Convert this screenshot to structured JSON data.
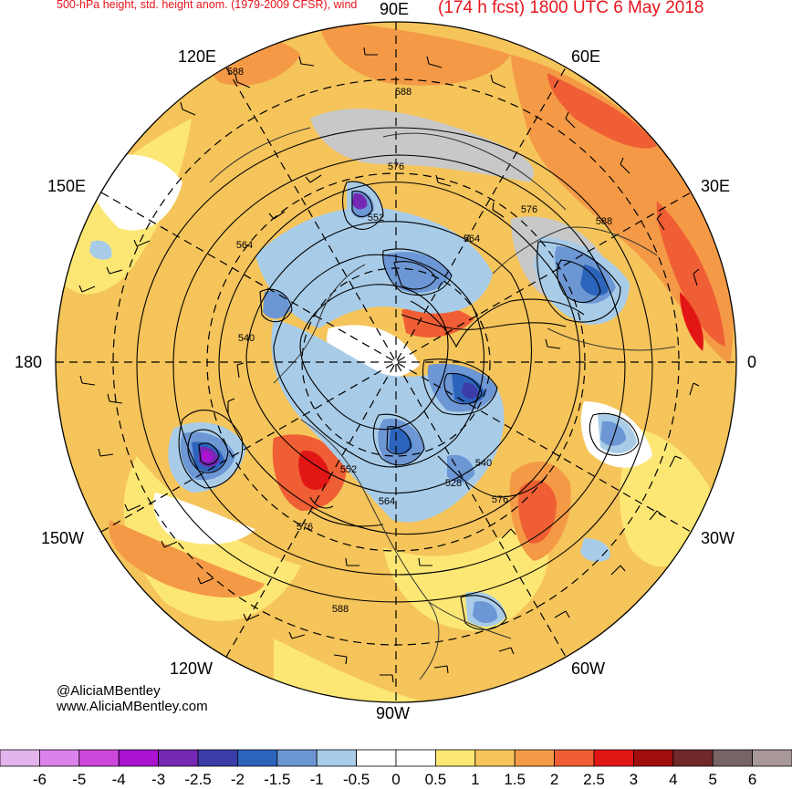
{
  "header": {
    "left_title": "500-hPa height, std. height anom. (1979-2009 CFSR), wind",
    "right_title": "(174 h fcst) 1800 UTC 6 May 2018"
  },
  "longitude_labels": {
    "e90": "90E",
    "e120": "120E",
    "e60": "60E",
    "e150": "150E",
    "e30": "30E",
    "lon180": "180",
    "lon0": "0",
    "w150": "150W",
    "w30": "30W",
    "w120": "120W",
    "w60": "60W",
    "w90": "90W"
  },
  "contour_labels": [
    "588",
    "588",
    "588",
    "576",
    "576",
    "552",
    "564",
    "564",
    "540",
    "552",
    "564",
    "576",
    "540",
    "528",
    "576",
    "588"
  ],
  "credits": {
    "handle": "@AliciaMBentley",
    "website": "www.AliciaMBentley.com"
  },
  "colorbar": {
    "colors": [
      "#e4b4ec",
      "#dc82ec",
      "#cc48dc",
      "#aa14d0",
      "#7628b4",
      "#3c3ca8",
      "#2c64bc",
      "#6c96d4",
      "#a8cce8",
      "#ffffff",
      "#ffffff",
      "#fde774",
      "#f5c45a",
      "#f49a46",
      "#ef5e34",
      "#e31616",
      "#a00e0e",
      "#702828",
      "#786464",
      "#a89898"
    ],
    "labels": [
      "-6",
      "-5",
      "-4",
      "-3",
      "-2.5",
      "-2",
      "-1.5",
      "-1",
      "-0.5",
      "0",
      "0.5",
      "1",
      "1.5",
      "2",
      "2.5",
      "3",
      "4",
      "5",
      "6"
    ]
  },
  "colors": {
    "title_red": "#e8141c",
    "positive_light": "#fde774",
    "positive_mid": "#f5c45a",
    "positive_orange": "#f49a46",
    "positive_red": "#ef5e34",
    "negative_light": "#a8cce8",
    "negative_mid": "#6c96d4",
    "negative_deep": "#2c64bc",
    "negative_purple": "#7628b4",
    "land_gray": "#c8c8c8"
  }
}
